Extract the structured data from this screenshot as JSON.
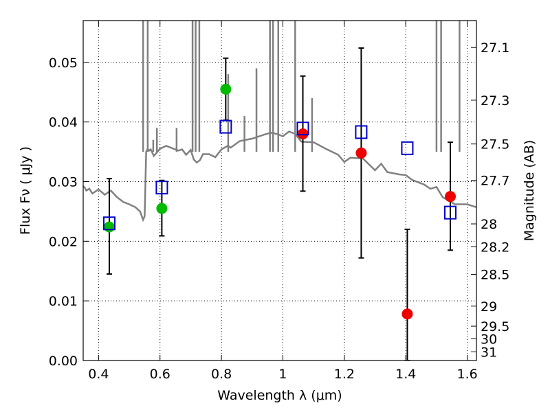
{
  "chart_data": {
    "type": "scatter",
    "title": "",
    "xlabel": "Wavelength  λ (μm)",
    "ylabel": "Flux  Fν  ( μJy )",
    "y2label": "Magnitude (AB)",
    "xlim": [
      0.35,
      1.63
    ],
    "ylim": [
      0.0,
      0.057
    ],
    "xticks": [
      0.4,
      0.6,
      0.8,
      1.0,
      1.2,
      1.4,
      1.6
    ],
    "xtick_labels": [
      "0.4",
      "0.6",
      "0.8",
      "1",
      "1.2",
      "1.4",
      "1.6"
    ],
    "yticks": [
      0.0,
      0.01,
      0.02,
      0.03,
      0.04,
      0.05
    ],
    "ytick_labels": [
      "0.00",
      "0.01",
      "0.02",
      "0.03",
      "0.04",
      "0.05"
    ],
    "y2ticks": [
      27.1,
      27.3,
      27.5,
      27.7,
      28,
      28.2,
      28.5,
      29,
      29.5,
      30,
      31
    ],
    "y2tick_labels": [
      "27.1",
      "27.3",
      "27.5",
      "27.7",
      "28",
      "28.2",
      "28.5",
      "29",
      "29.5",
      "30",
      "31"
    ],
    "grid": true,
    "legend": "none",
    "series": [
      {
        "marker": "filled-circle",
        "color": "#00bb00",
        "points": [
          {
            "x": 0.435,
            "y": 0.0224,
            "ylo": 0.0145,
            "yhi": 0.0305
          },
          {
            "x": 0.606,
            "y": 0.0255,
            "ylo": 0.0209,
            "yhi": 0.0302
          },
          {
            "x": 0.814,
            "y": 0.0455,
            "ylo": 0.0403,
            "yhi": 0.0507
          }
        ]
      },
      {
        "marker": "filled-circle",
        "color": "#ee0000",
        "points": [
          {
            "x": 1.065,
            "y": 0.038,
            "ylo": 0.0284,
            "yhi": 0.0477
          },
          {
            "x": 1.255,
            "y": 0.0348,
            "ylo": 0.0172,
            "yhi": 0.0524
          },
          {
            "x": 1.405,
            "y": 0.0078,
            "ylo": 0.0,
            "yhi": 0.022
          },
          {
            "x": 1.545,
            "y": 0.0275,
            "ylo": 0.0185,
            "yhi": 0.0366
          }
        ]
      },
      {
        "marker": "open-square",
        "color": "#0000cc",
        "points": [
          {
            "x": 0.435,
            "y": 0.023
          },
          {
            "x": 0.606,
            "y": 0.029
          },
          {
            "x": 0.814,
            "y": 0.0392
          },
          {
            "x": 1.065,
            "y": 0.0389
          },
          {
            "x": 1.255,
            "y": 0.0383
          },
          {
            "x": 1.405,
            "y": 0.0356
          },
          {
            "x": 1.545,
            "y": 0.0248
          }
        ]
      }
    ],
    "model_spectrum": {
      "color": "#808080",
      "x": [
        0.35,
        0.355,
        0.36,
        0.37,
        0.38,
        0.4,
        0.42,
        0.44,
        0.46,
        0.48,
        0.5,
        0.52,
        0.535,
        0.545,
        0.55,
        0.555,
        0.56,
        0.565,
        0.57,
        0.58,
        0.6,
        0.62,
        0.65,
        0.66,
        0.672,
        0.685,
        0.7,
        0.71,
        0.72,
        0.73,
        0.74,
        0.76,
        0.78,
        0.8,
        0.82,
        0.83,
        0.86,
        0.9,
        0.94,
        0.96,
        0.98,
        1.0,
        1.02,
        1.04,
        1.06,
        1.1,
        1.14,
        1.18,
        1.2,
        1.22,
        1.26,
        1.3,
        1.32,
        1.34,
        1.38,
        1.4,
        1.42,
        1.46,
        1.48,
        1.5,
        1.52,
        1.54,
        1.56,
        1.6,
        1.63
      ],
      "y": [
        0.0292,
        0.029,
        0.0285,
        0.0288,
        0.028,
        0.0287,
        0.0278,
        0.0285,
        0.0274,
        0.0266,
        0.0262,
        0.0257,
        0.025,
        0.0236,
        0.0242,
        0.035,
        0.0355,
        0.0352,
        0.0354,
        0.0343,
        0.0355,
        0.036,
        0.0354,
        0.0352,
        0.0354,
        0.0345,
        0.0353,
        0.0337,
        0.0332,
        0.0336,
        0.0346,
        0.0346,
        0.0341,
        0.0354,
        0.036,
        0.0357,
        0.0368,
        0.0372,
        0.0379,
        0.0382,
        0.038,
        0.0376,
        0.0384,
        0.038,
        0.0367,
        0.0366,
        0.0355,
        0.0345,
        0.0333,
        0.034,
        0.0339,
        0.0319,
        0.033,
        0.0316,
        0.0312,
        0.0311,
        0.0303,
        0.0295,
        0.0288,
        0.0291,
        0.0274,
        0.0268,
        0.0262,
        0.0262,
        0.0257
      ]
    }
  }
}
